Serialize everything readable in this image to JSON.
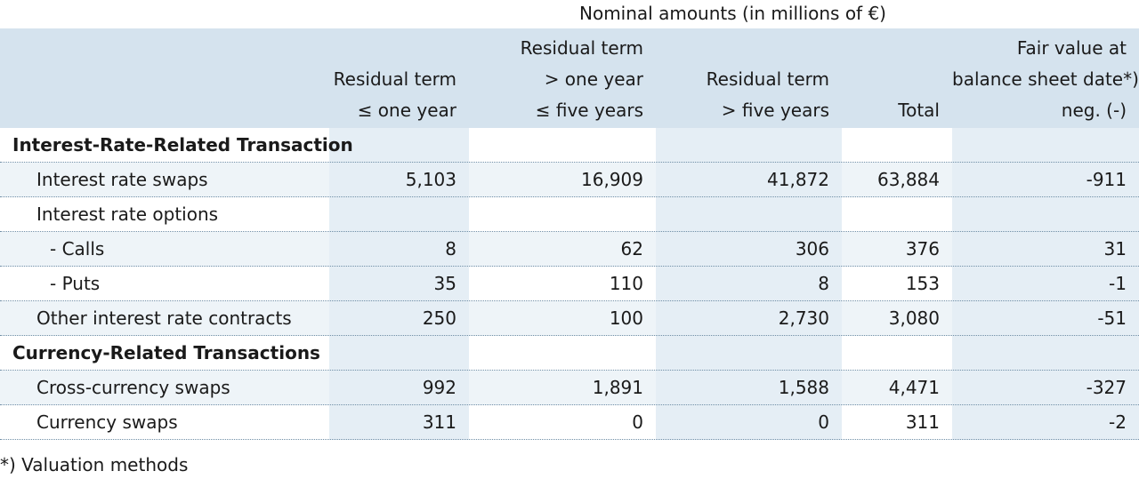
{
  "table": {
    "super_header": "Nominal amounts (in millions of €)",
    "columns": [
      {
        "lines": [
          "Residual term",
          "≤ one year"
        ]
      },
      {
        "lines": [
          "Residual term",
          "> one year",
          "≤ five years"
        ]
      },
      {
        "lines": [
          "Residual term",
          "> five years"
        ]
      },
      {
        "lines": [
          "Total"
        ]
      },
      {
        "lines": [
          "Fair value at",
          "balance sheet date*)",
          "neg. (-)"
        ]
      }
    ],
    "rows": [
      {
        "type": "section",
        "label": "Interest-Rate-Related Transaction",
        "values": []
      },
      {
        "type": "l1",
        "label": "Interest rate swaps",
        "values": [
          "5,103",
          "16,909",
          "41,872",
          "63,884",
          "-911"
        ]
      },
      {
        "type": "l1",
        "label": "Interest rate options",
        "values": []
      },
      {
        "type": "l2",
        "label": "- Calls",
        "values": [
          "8",
          "62",
          "306",
          "376",
          "31"
        ]
      },
      {
        "type": "l2",
        "label": "- Puts",
        "values": [
          "35",
          "110",
          "8",
          "153",
          "-1"
        ]
      },
      {
        "type": "l1",
        "label": "Other interest rate contracts",
        "values": [
          "250",
          "100",
          "2,730",
          "3,080",
          "-51"
        ]
      },
      {
        "type": "section",
        "label": "Currency-Related Transactions",
        "values": []
      },
      {
        "type": "l1",
        "label": "Cross-currency swaps",
        "values": [
          "992",
          "1,891",
          "1,588",
          "4,471",
          "-327"
        ]
      },
      {
        "type": "l1",
        "label": "Currency swaps",
        "values": [
          "311",
          "0",
          "0",
          "311",
          "-2"
        ]
      }
    ]
  },
  "footnote": "*) Valuation methods"
}
